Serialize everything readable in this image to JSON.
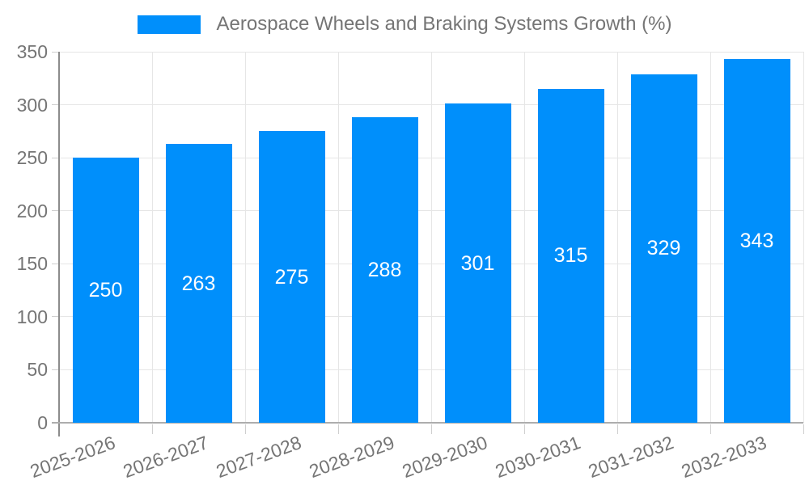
{
  "chart_data": {
    "type": "bar",
    "title": "Aerospace Wheels and Braking Systems Growth (%)",
    "categories": [
      "2025-2026",
      "2026-2027",
      "2027-2028",
      "2028-2029",
      "2029-2030",
      "2030-2031",
      "2031-2032",
      "2032-2033"
    ],
    "values": [
      250,
      263,
      275,
      288,
      301,
      315,
      329,
      343
    ],
    "xlabel": "",
    "ylabel": "",
    "ylim": [
      0,
      350
    ],
    "yticks": [
      0,
      50,
      100,
      150,
      200,
      250,
      300,
      350
    ],
    "grid": true,
    "legend_position": "top",
    "x_tick_label_rotation_deg": -20,
    "colors": {
      "bar": "#008FFB",
      "value_label": "#FFFFFF",
      "axis_label": "#757575",
      "legend_text": "#757575",
      "gridline": "#E6E6E6",
      "y_axis_line": "#8C8C8C",
      "x_axis_line": "#ADADAD",
      "tick": "#CFCFCF"
    }
  }
}
